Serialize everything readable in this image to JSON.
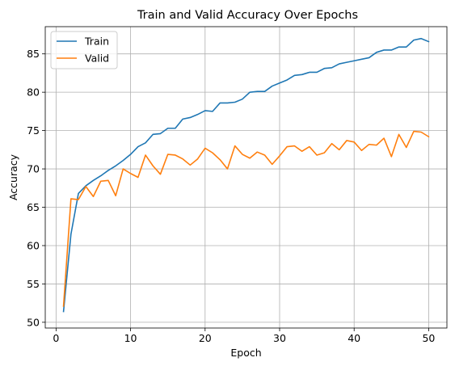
{
  "chart_data": {
    "type": "line",
    "title": "Train and Valid Accuracy Over Epochs",
    "xlabel": "Epoch",
    "ylabel": "Accuracy",
    "xlim": [
      -1.45,
      52.45
    ],
    "ylim": [
      49.25,
      88.55
    ],
    "xticks": [
      0,
      10,
      20,
      30,
      40,
      50
    ],
    "yticks": [
      50,
      55,
      60,
      65,
      70,
      75,
      80,
      85
    ],
    "grid": true,
    "legend_position": "top-left",
    "x": [
      1,
      2,
      3,
      4,
      5,
      6,
      7,
      8,
      9,
      10,
      11,
      12,
      13,
      14,
      15,
      16,
      17,
      18,
      19,
      20,
      21,
      22,
      23,
      24,
      25,
      26,
      27,
      28,
      29,
      30,
      31,
      32,
      33,
      34,
      35,
      36,
      37,
      38,
      39,
      40,
      41,
      42,
      43,
      44,
      45,
      46,
      47,
      48,
      49,
      50
    ],
    "series": [
      {
        "name": "Train",
        "color": "#1f77b4",
        "values": [
          51.4,
          61.5,
          66.8,
          67.8,
          68.5,
          69.1,
          69.8,
          70.4,
          71.1,
          71.9,
          72.9,
          73.4,
          74.5,
          74.6,
          75.3,
          75.3,
          76.5,
          76.7,
          77.1,
          77.6,
          77.5,
          78.6,
          78.6,
          78.7,
          79.1,
          80.0,
          80.1,
          80.1,
          80.8,
          81.2,
          81.6,
          82.2,
          82.3,
          82.6,
          82.6,
          83.1,
          83.2,
          83.7,
          83.9,
          84.1,
          84.3,
          84.5,
          85.2,
          85.5,
          85.5,
          85.9,
          85.9,
          86.8,
          87.0,
          86.6
        ]
      },
      {
        "name": "Valid",
        "color": "#ff7f0e",
        "values": [
          52.1,
          66.1,
          66.0,
          67.7,
          66.4,
          68.4,
          68.5,
          66.5,
          70.0,
          69.4,
          68.9,
          71.8,
          70.4,
          69.3,
          71.9,
          71.8,
          71.3,
          70.5,
          71.3,
          72.7,
          72.1,
          71.2,
          70.0,
          73.0,
          71.9,
          71.4,
          72.2,
          71.8,
          70.6,
          71.7,
          72.9,
          73.0,
          72.3,
          72.9,
          71.8,
          72.1,
          73.3,
          72.5,
          73.7,
          73.5,
          72.4,
          73.2,
          73.1,
          74.0,
          71.6,
          74.5,
          72.8,
          74.9,
          74.8,
          74.2
        ]
      }
    ]
  }
}
